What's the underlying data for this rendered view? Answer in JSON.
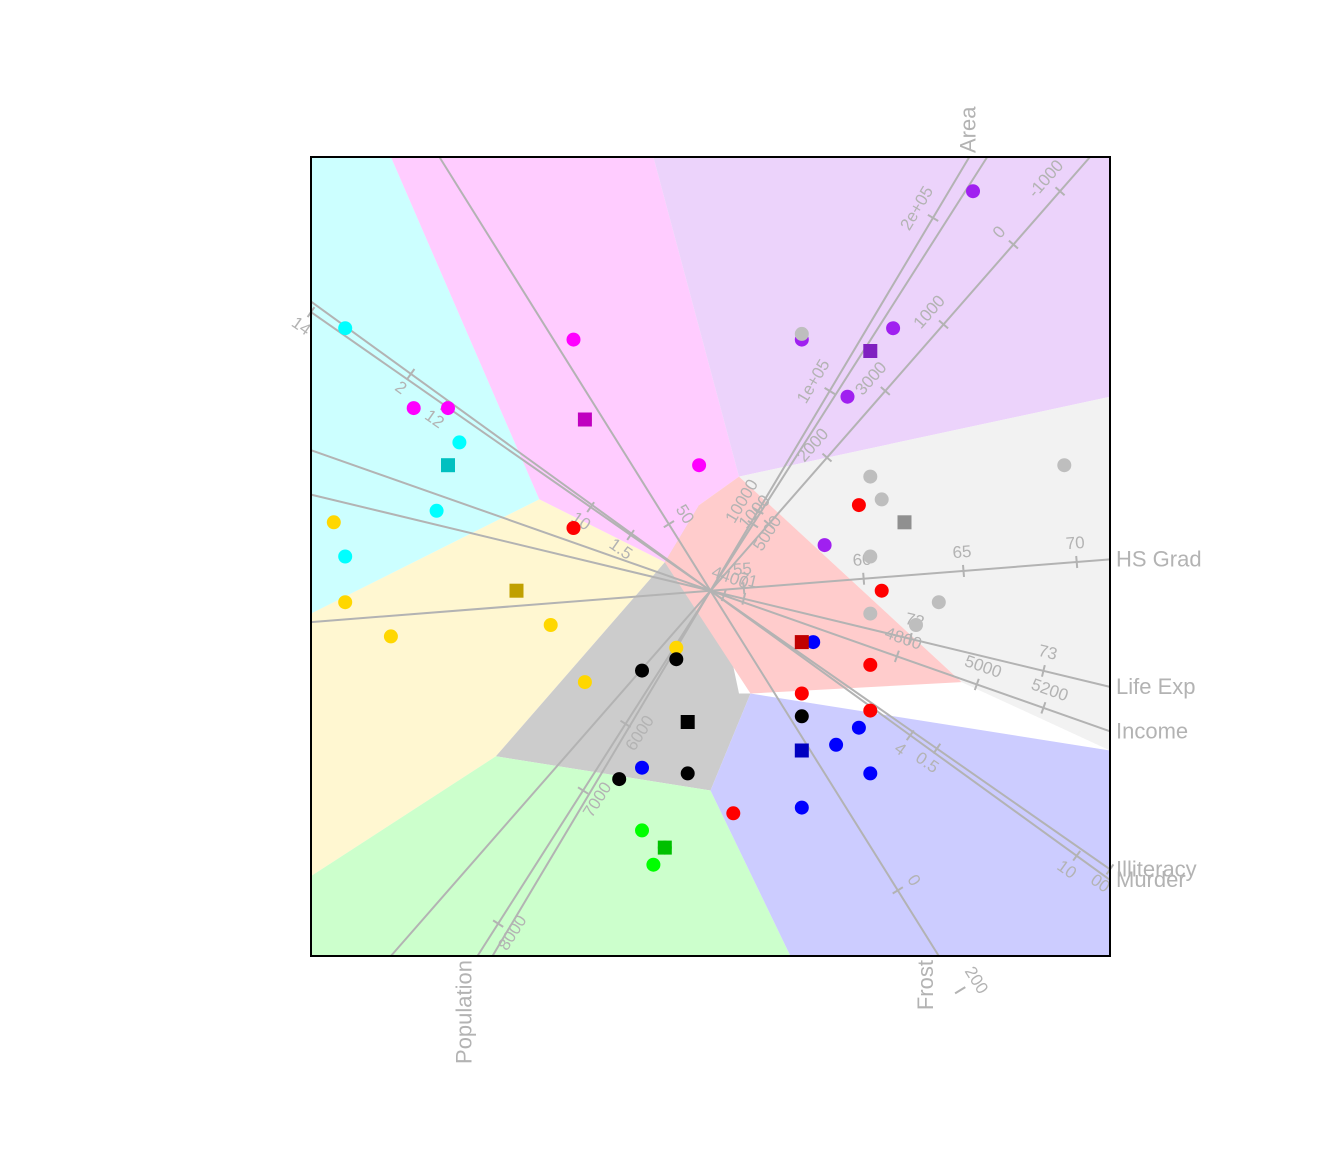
{
  "chart_data": {
    "type": "scatter",
    "description_type": "biplot",
    "title": "",
    "xlabel": "",
    "ylabel": "",
    "origin": [
      0.0,
      0.0
    ],
    "xlim": [
      -0.35,
      0.35
    ],
    "ylim": [
      -0.32,
      0.38
    ],
    "grid": false,
    "legend": "none",
    "regions": [
      {
        "name": "cyan",
        "color": "#ccffff",
        "polygon": [
          [
            -0.35,
            0.38
          ],
          [
            -0.28,
            0.38
          ],
          [
            -0.15,
            0.08
          ],
          [
            -0.35,
            -0.02
          ]
        ]
      },
      {
        "name": "magenta",
        "color": "#ffccff",
        "polygon": [
          [
            -0.28,
            0.38
          ],
          [
            -0.05,
            0.38
          ],
          [
            0.025,
            0.1
          ],
          [
            -0.01,
            0.075
          ],
          [
            -0.04,
            0.025
          ],
          [
            -0.15,
            0.08
          ]
        ]
      },
      {
        "name": "purple",
        "color": "#ecd3fb",
        "polygon": [
          [
            -0.05,
            0.38
          ],
          [
            0.35,
            0.38
          ],
          [
            0.35,
            0.17
          ],
          [
            0.025,
            0.1
          ]
        ]
      },
      {
        "name": "light-grey",
        "color": "#f2f2f2",
        "polygon": [
          [
            0.025,
            0.1
          ],
          [
            0.35,
            0.17
          ],
          [
            0.35,
            -0.14
          ],
          [
            0.22,
            -0.08
          ]
        ]
      },
      {
        "name": "yellow",
        "color": "#fff7d1",
        "polygon": [
          [
            -0.35,
            -0.02
          ],
          [
            -0.15,
            0.08
          ],
          [
            -0.04,
            0.025
          ],
          [
            -0.188,
            -0.145
          ],
          [
            -0.35,
            -0.25
          ]
        ]
      },
      {
        "name": "grey",
        "color": "#cccccc",
        "polygon": [
          [
            -0.04,
            0.025
          ],
          [
            -0.01,
            0.075
          ],
          [
            0.025,
            -0.09
          ],
          [
            0.035,
            -0.09
          ],
          [
            0.0,
            -0.175
          ],
          [
            -0.188,
            -0.145
          ]
        ]
      },
      {
        "name": "pink",
        "color": "#ffcccc",
        "polygon": [
          [
            0.025,
            0.1
          ],
          [
            0.22,
            -0.08
          ],
          [
            0.035,
            -0.09
          ],
          [
            -0.04,
            0.025
          ],
          [
            -0.01,
            0.075
          ]
        ]
      },
      {
        "name": "green",
        "color": "#ccffcc",
        "polygon": [
          [
            -0.35,
            -0.25
          ],
          [
            -0.188,
            -0.145
          ],
          [
            0.0,
            -0.175
          ],
          [
            0.07,
            -0.32
          ],
          [
            -0.35,
            -0.32
          ]
        ]
      },
      {
        "name": "blue",
        "color": "#ccccff",
        "polygon": [
          [
            0.035,
            -0.09
          ],
          [
            0.35,
            -0.14
          ],
          [
            0.35,
            -0.32
          ],
          [
            0.07,
            -0.32
          ],
          [
            0.0,
            -0.175
          ]
        ]
      }
    ],
    "axes": [
      {
        "name": "Murder",
        "direction": [
          -0.76,
          0.55
        ],
        "name_side": "start",
        "ticks": [
          {
            "label": "2",
            "t": 0.45
          },
          {
            "label": "4",
            "t": -0.3
          },
          {
            "label": "10",
            "t": -0.55
          }
        ]
      },
      {
        "name": "Illiteracy",
        "direction": [
          -0.76,
          0.53
        ],
        "name_side": "start",
        "ticks": [
          {
            "label": "14",
            "t": 0.6
          },
          {
            "label": "12",
            "t": 0.4
          },
          {
            "label": "10",
            "t": 0.18
          },
          {
            "label": "1.5",
            "t": 0.12
          },
          {
            "label": "0.5",
            "t": -0.34
          },
          {
            "label": "00",
            "t": -0.6
          }
        ]
      },
      {
        "name": "Population",
        "direction": [
          -0.37,
          -0.58
        ],
        "name_side": "end",
        "ticks": [
          {
            "label": "5000",
            "t": -0.1
          },
          {
            "label": "6000",
            "t": 0.2
          },
          {
            "label": "7000",
            "t": 0.3
          },
          {
            "label": "8000",
            "t": 0.5
          }
        ]
      },
      {
        "name": "Frost",
        "direction": [
          0.3,
          -0.48
        ],
        "name_side": "end",
        "ticks": [
          {
            "label": "50",
            "t": -0.1
          },
          {
            "label": "0",
            "t": 0.45
          },
          {
            "label": "200",
            "t": 0.6
          }
        ]
      },
      {
        "name": "Area",
        "direction": [
          0.37,
          0.62
        ],
        "name_side": "end",
        "ticks": [
          {
            "label": "1e+05",
            "t": 0.3
          },
          {
            "label": "10000",
            "t": 0.12
          },
          {
            "label": "2e+05",
            "t": 0.56
          }
        ]
      },
      {
        "name": "Life Exp",
        "direction": [
          0.54,
          -0.13
        ],
        "name_side": "end",
        "ticks": [
          {
            "label": "71",
            "t": 0.05
          },
          {
            "label": "72",
            "t": 0.3
          },
          {
            "label": "73",
            "t": 0.5
          }
        ]
      },
      {
        "name": "Income",
        "direction": [
          0.54,
          -0.19
        ],
        "name_side": "end",
        "ticks": [
          {
            "label": "4400",
            "t": 0.02
          },
          {
            "label": "4800",
            "t": 0.28
          },
          {
            "label": "5000",
            "t": 0.4
          },
          {
            "label": "5200",
            "t": 0.5
          }
        ]
      },
      {
        "name": "HS Grad",
        "direction": [
          0.51,
          0.04
        ],
        "name_side": "end",
        "ticks": [
          {
            "label": "55",
            "t": 0.05
          },
          {
            "label": "60",
            "t": 0.23
          },
          {
            "label": "65",
            "t": 0.38
          },
          {
            "label": "70",
            "t": 0.55
          }
        ]
      },
      {
        "name": "",
        "direction": [
          0.49,
          0.56
        ],
        "name_side": "end",
        "ticks": [
          {
            "label": "1000",
            "t": 0.1
          },
          {
            "label": "2000",
            "t": 0.2
          },
          {
            "label": "3000",
            "t": 0.3
          },
          {
            "label": "1000",
            "t": 0.4
          },
          {
            "label": "0",
            "t": 0.52
          },
          {
            "label": "-1000",
            "t": 0.6
          }
        ]
      }
    ],
    "points": [
      {
        "x": -0.32,
        "y": 0.23,
        "color": "#00ffff"
      },
      {
        "x": -0.22,
        "y": 0.13,
        "color": "#00ffff"
      },
      {
        "x": -0.24,
        "y": 0.07,
        "color": "#00ffff"
      },
      {
        "x": -0.32,
        "y": 0.03,
        "color": "#00ffff"
      },
      {
        "x": -0.12,
        "y": 0.22,
        "color": "#ff00ff"
      },
      {
        "x": -0.26,
        "y": 0.16,
        "color": "#ff00ff"
      },
      {
        "x": -0.23,
        "y": 0.16,
        "color": "#ff00ff"
      },
      {
        "x": -0.01,
        "y": 0.11,
        "color": "#ff00ff"
      },
      {
        "x": 0.23,
        "y": 0.35,
        "color": "#a020f0"
      },
      {
        "x": 0.16,
        "y": 0.23,
        "color": "#a020f0"
      },
      {
        "x": 0.08,
        "y": 0.22,
        "color": "#a020f0"
      },
      {
        "x": 0.12,
        "y": 0.17,
        "color": "#a020f0"
      },
      {
        "x": 0.1,
        "y": 0.04,
        "color": "#a020f0"
      },
      {
        "x": 0.08,
        "y": 0.225,
        "color": "#bebebe"
      },
      {
        "x": 0.14,
        "y": 0.1,
        "color": "#bebebe"
      },
      {
        "x": 0.15,
        "y": 0.08,
        "color": "#bebebe"
      },
      {
        "x": 0.14,
        "y": 0.03,
        "color": "#bebebe"
      },
      {
        "x": 0.2,
        "y": -0.01,
        "color": "#bebebe"
      },
      {
        "x": 0.18,
        "y": -0.03,
        "color": "#bebebe"
      },
      {
        "x": 0.14,
        "y": -0.02,
        "color": "#bebebe"
      },
      {
        "x": 0.31,
        "y": 0.11,
        "color": "#bebebe"
      },
      {
        "x": 0.13,
        "y": 0.075,
        "color": "#ff0000"
      },
      {
        "x": 0.15,
        "y": 0.0,
        "color": "#ff0000"
      },
      {
        "x": 0.14,
        "y": -0.065,
        "color": "#ff0000"
      },
      {
        "x": 0.08,
        "y": -0.09,
        "color": "#ff0000"
      },
      {
        "x": 0.14,
        "y": -0.105,
        "color": "#ff0000"
      },
      {
        "x": 0.02,
        "y": -0.195,
        "color": "#ff0000"
      },
      {
        "x": -0.12,
        "y": 0.055,
        "color": "#ff0000"
      },
      {
        "x": -0.33,
        "y": 0.06,
        "color": "#ffd700"
      },
      {
        "x": -0.32,
        "y": -0.01,
        "color": "#ffd700"
      },
      {
        "x": -0.28,
        "y": -0.04,
        "color": "#ffd700"
      },
      {
        "x": -0.14,
        "y": -0.03,
        "color": "#ffd700"
      },
      {
        "x": -0.11,
        "y": -0.08,
        "color": "#ffd700"
      },
      {
        "x": -0.11,
        "y": 0.15,
        "color": "#ffd700"
      },
      {
        "x": -0.03,
        "y": -0.05,
        "color": "#ffd700"
      },
      {
        "x": -0.06,
        "y": -0.07,
        "color": "#000000"
      },
      {
        "x": -0.03,
        "y": -0.06,
        "color": "#000000"
      },
      {
        "x": 0.08,
        "y": -0.11,
        "color": "#000000"
      },
      {
        "x": -0.02,
        "y": -0.16,
        "color": "#000000"
      },
      {
        "x": -0.08,
        "y": -0.165,
        "color": "#000000"
      },
      {
        "x": 0.11,
        "y": -0.135,
        "color": "#0000ff"
      },
      {
        "x": 0.13,
        "y": -0.12,
        "color": "#0000ff"
      },
      {
        "x": 0.14,
        "y": -0.16,
        "color": "#0000ff"
      },
      {
        "x": 0.08,
        "y": -0.19,
        "color": "#0000ff"
      },
      {
        "x": -0.06,
        "y": -0.155,
        "color": "#0000ff"
      },
      {
        "x": 0.09,
        "y": -0.045,
        "color": "#0000ff"
      },
      {
        "x": -0.06,
        "y": -0.21,
        "color": "#00ff00"
      },
      {
        "x": -0.04,
        "y": -0.225,
        "color": "#00ff00"
      },
      {
        "x": -0.05,
        "y": -0.24,
        "color": "#00ff00"
      }
    ],
    "centroids": [
      {
        "x": -0.23,
        "y": 0.11,
        "color": "#00c0c0"
      },
      {
        "x": -0.11,
        "y": 0.15,
        "color": "#c000c0"
      },
      {
        "x": 0.14,
        "y": 0.21,
        "color": "#8020c0"
      },
      {
        "x": 0.17,
        "y": 0.06,
        "color": "#909090"
      },
      {
        "x": 0.08,
        "y": -0.045,
        "color": "#c00000"
      },
      {
        "x": -0.17,
        "y": 0.0,
        "color": "#c0a000"
      },
      {
        "x": -0.02,
        "y": -0.115,
        "color": "#000000"
      },
      {
        "x": 0.08,
        "y": -0.14,
        "color": "#0000c0"
      },
      {
        "x": -0.04,
        "y": -0.225,
        "color": "#00c000"
      }
    ]
  }
}
